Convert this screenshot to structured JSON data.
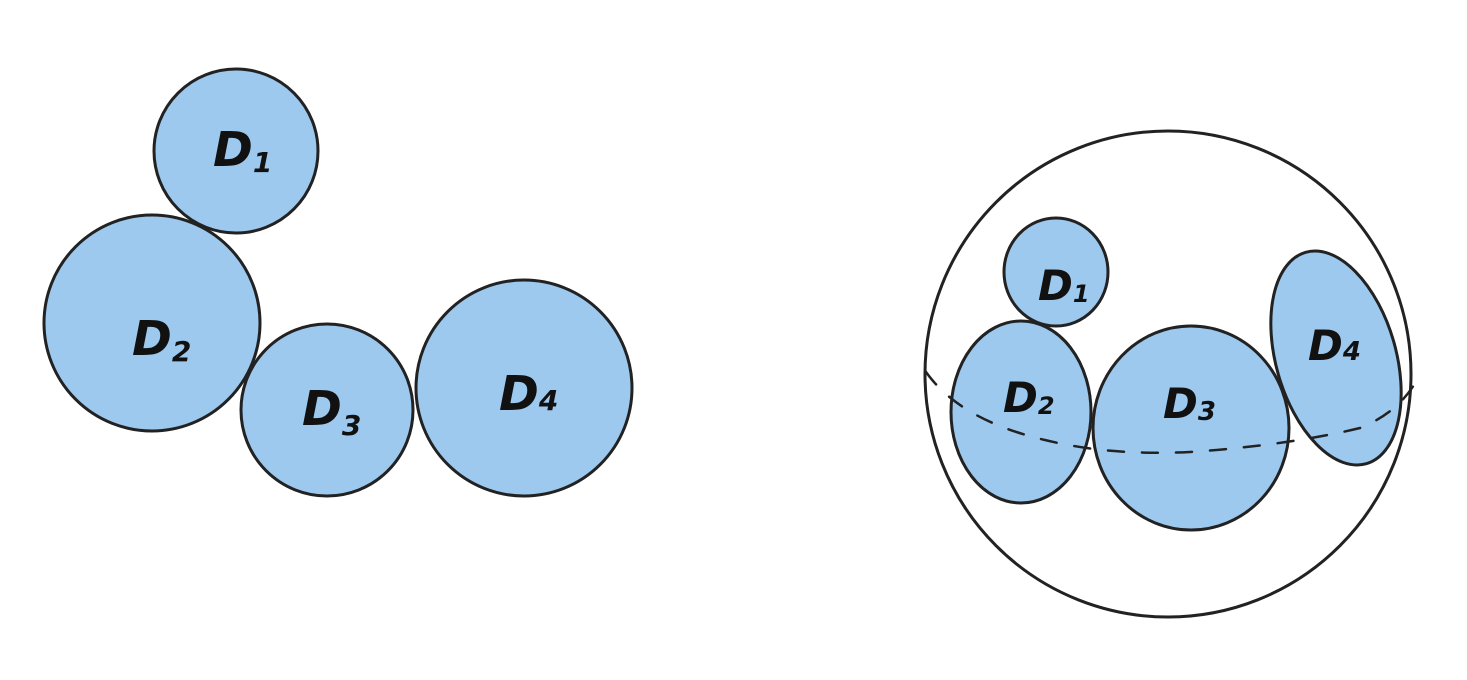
{
  "colors": {
    "disk_fill": "#9dc9ef",
    "stroke": "#222222",
    "background": "#ffffff"
  },
  "left_panel": {
    "disks": [
      {
        "letter": "D",
        "index": "1"
      },
      {
        "letter": "D",
        "index": "2"
      },
      {
        "letter": "D",
        "index": "3"
      },
      {
        "letter": "D",
        "index": "4"
      }
    ]
  },
  "right_panel": {
    "disks": [
      {
        "letter": "D",
        "index": "1"
      },
      {
        "letter": "D",
        "index": "2"
      },
      {
        "letter": "D",
        "index": "3"
      },
      {
        "letter": "D",
        "index": "4"
      }
    ]
  }
}
